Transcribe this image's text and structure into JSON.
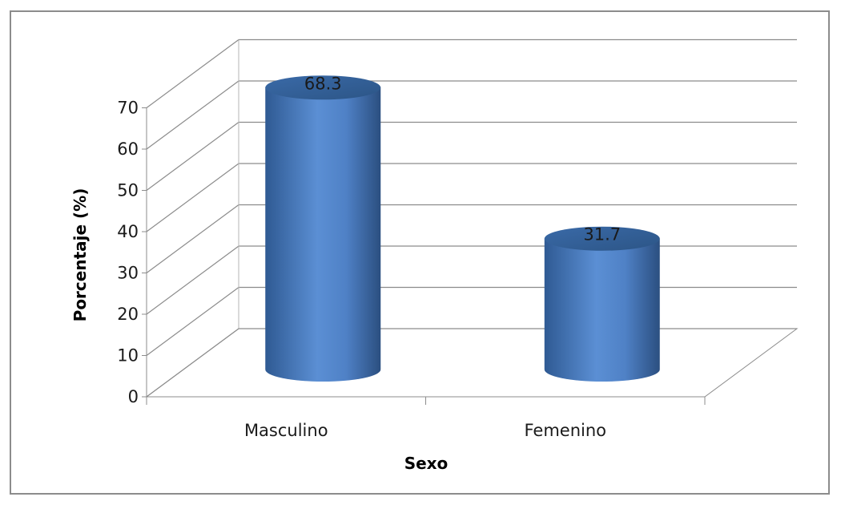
{
  "chart_data": {
    "type": "bar",
    "style": "3d-cylinder",
    "categories": [
      "Masculino",
      "Femenino"
    ],
    "values": [
      68.3,
      31.7
    ],
    "data_labels": [
      "68.3",
      "31.7"
    ],
    "xlabel": "Sexo",
    "ylabel": "Porcentaje (%)",
    "ylim": [
      0,
      70
    ],
    "yticks": [
      "0",
      "10",
      "20",
      "30",
      "40",
      "50",
      "60",
      "70"
    ],
    "grid": true,
    "legend": "none",
    "colors": {
      "bar": "#4f81bd",
      "bar_dark": "#2f5a8e",
      "bar_light": "#6f9ad6",
      "grid": "#8c8c8c"
    }
  }
}
